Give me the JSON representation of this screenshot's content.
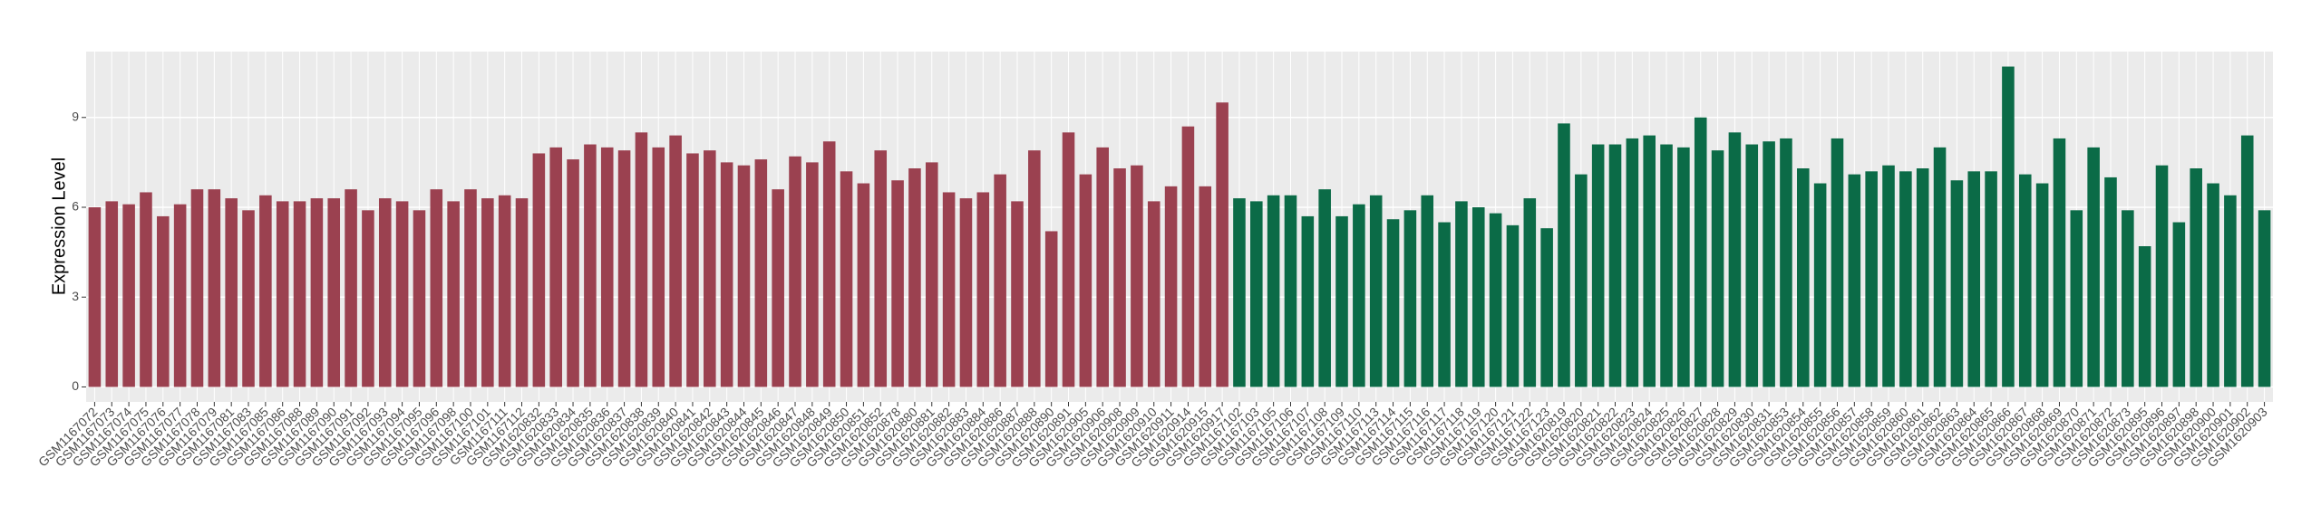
{
  "chart_data": {
    "type": "bar",
    "y_label": "Expression Level",
    "categories": [
      "GSM1167072",
      "GSM1167073",
      "GSM1167074",
      "GSM1167075",
      "GSM1167076",
      "GSM1167077",
      "GSM1167078",
      "GSM1167079",
      "GSM1167081",
      "GSM1167083",
      "GSM1167085",
      "GSM1167086",
      "GSM1167088",
      "GSM1167089",
      "GSM1167090",
      "GSM1167091",
      "GSM1167092",
      "GSM1167093",
      "GSM1167094",
      "GSM1167095",
      "GSM1167096",
      "GSM1167098",
      "GSM1167100",
      "GSM1167101",
      "GSM1167111",
      "GSM1167112",
      "GSM1620832",
      "GSM1620833",
      "GSM1620834",
      "GSM1620835",
      "GSM1620836",
      "GSM1620837",
      "GSM1620838",
      "GSM1620839",
      "GSM1620840",
      "GSM1620841",
      "GSM1620842",
      "GSM1620843",
      "GSM1620844",
      "GSM1620845",
      "GSM1620846",
      "GSM1620847",
      "GSM1620848",
      "GSM1620849",
      "GSM1620850",
      "GSM1620851",
      "GSM1620852",
      "GSM1620878",
      "GSM1620880",
      "GSM1620881",
      "GSM1620882",
      "GSM1620883",
      "GSM1620884",
      "GSM1620886",
      "GSM1620887",
      "GSM1620888",
      "GSM1620890",
      "GSM1620891",
      "GSM1620905",
      "GSM1620906",
      "GSM1620908",
      "GSM1620909",
      "GSM1620910",
      "GSM1620911",
      "GSM1620914",
      "GSM1620915",
      "GSM1620917",
      "GSM1167102",
      "GSM1167103",
      "GSM1167105",
      "GSM1167106",
      "GSM1167107",
      "GSM1167108",
      "GSM1167109",
      "GSM1167110",
      "GSM1167113",
      "GSM1167114",
      "GSM1167115",
      "GSM1167116",
      "GSM1167117",
      "GSM1167118",
      "GSM1167119",
      "GSM1167120",
      "GSM1167121",
      "GSM1167122",
      "GSM1167123",
      "GSM1620819",
      "GSM1620820",
      "GSM1620821",
      "GSM1620822",
      "GSM1620823",
      "GSM1620824",
      "GSM1620825",
      "GSM1620826",
      "GSM1620827",
      "GSM1620828",
      "GSM1620829",
      "GSM1620830",
      "GSM1620831",
      "GSM1620853",
      "GSM1620854",
      "GSM1620855",
      "GSM1620856",
      "GSM1620857",
      "GSM1620858",
      "GSM1620859",
      "GSM1620860",
      "GSM1620861",
      "GSM1620862",
      "GSM1620863",
      "GSM1620864",
      "GSM1620865",
      "GSM1620866",
      "GSM1620867",
      "GSM1620868",
      "GSM1620869",
      "GSM1620870",
      "GSM1620871",
      "GSM1620872",
      "GSM1620873",
      "GSM1620895",
      "GSM1620896",
      "GSM1620897",
      "GSM1620898",
      "GSM1620900",
      "GSM1620901",
      "GSM1620902",
      "GSM1620903"
    ],
    "values": [
      6.0,
      6.2,
      6.1,
      6.5,
      5.7,
      6.1,
      6.6,
      6.6,
      6.3,
      5.9,
      6.4,
      6.2,
      6.2,
      6.3,
      6.3,
      6.6,
      5.9,
      6.3,
      6.2,
      5.9,
      6.6,
      6.2,
      6.6,
      6.3,
      6.4,
      6.3,
      7.8,
      8.0,
      7.6,
      8.1,
      8.0,
      7.9,
      8.5,
      8.0,
      8.4,
      7.8,
      7.9,
      7.5,
      7.4,
      7.6,
      6.6,
      7.7,
      7.5,
      8.2,
      7.2,
      6.8,
      7.9,
      6.9,
      7.3,
      7.5,
      6.5,
      6.3,
      6.5,
      7.1,
      6.2,
      7.9,
      5.2,
      8.5,
      7.1,
      8.0,
      7.3,
      7.4,
      6.2,
      6.7,
      8.7,
      6.7,
      9.5,
      6.3,
      6.2,
      6.4,
      6.4,
      5.7,
      6.6,
      5.7,
      6.1,
      6.4,
      5.6,
      5.9,
      6.4,
      5.5,
      6.2,
      6.0,
      5.8,
      5.4,
      6.3,
      5.3,
      8.8,
      7.1,
      8.1,
      8.1,
      8.3,
      8.4,
      8.1,
      8.0,
      9.0,
      7.9,
      8.5,
      8.1,
      8.2,
      8.3,
      7.3,
      6.8,
      8.3,
      7.1,
      7.2,
      7.4,
      7.2,
      7.3,
      8.0,
      6.9,
      7.2,
      7.2,
      10.7,
      7.1,
      6.8,
      8.3,
      5.9,
      8.0,
      7.0,
      5.9,
      4.7,
      7.4,
      5.5,
      7.3,
      6.8,
      6.4,
      8.4,
      5.9
    ],
    "colors": [
      "#9b4150",
      "#9b4150",
      "#9b4150",
      "#9b4150",
      "#9b4150",
      "#9b4150",
      "#9b4150",
      "#9b4150",
      "#9b4150",
      "#9b4150",
      "#9b4150",
      "#9b4150",
      "#9b4150",
      "#9b4150",
      "#9b4150",
      "#9b4150",
      "#9b4150",
      "#9b4150",
      "#9b4150",
      "#9b4150",
      "#9b4150",
      "#9b4150",
      "#9b4150",
      "#9b4150",
      "#9b4150",
      "#9b4150",
      "#9b4150",
      "#9b4150",
      "#9b4150",
      "#9b4150",
      "#9b4150",
      "#9b4150",
      "#9b4150",
      "#9b4150",
      "#9b4150",
      "#9b4150",
      "#9b4150",
      "#9b4150",
      "#9b4150",
      "#9b4150",
      "#9b4150",
      "#9b4150",
      "#9b4150",
      "#9b4150",
      "#9b4150",
      "#9b4150",
      "#9b4150",
      "#9b4150",
      "#9b4150",
      "#9b4150",
      "#9b4150",
      "#9b4150",
      "#9b4150",
      "#9b4150",
      "#9b4150",
      "#9b4150",
      "#9b4150",
      "#9b4150",
      "#9b4150",
      "#9b4150",
      "#9b4150",
      "#9b4150",
      "#9b4150",
      "#9b4150",
      "#9b4150",
      "#9b4150",
      "#9b4150",
      "#0b6b47",
      "#0b6b47",
      "#0b6b47",
      "#0b6b47",
      "#0b6b47",
      "#0b6b47",
      "#0b6b47",
      "#0b6b47",
      "#0b6b47",
      "#0b6b47",
      "#0b6b47",
      "#0b6b47",
      "#0b6b47",
      "#0b6b47",
      "#0b6b47",
      "#0b6b47",
      "#0b6b47",
      "#0b6b47",
      "#0b6b47",
      "#0b6b47",
      "#0b6b47",
      "#0b6b47",
      "#0b6b47",
      "#0b6b47",
      "#0b6b47",
      "#0b6b47",
      "#0b6b47",
      "#0b6b47",
      "#0b6b47",
      "#0b6b47",
      "#0b6b47",
      "#0b6b47",
      "#0b6b47",
      "#0b6b47",
      "#0b6b47",
      "#0b6b47",
      "#0b6b47",
      "#0b6b47",
      "#0b6b47",
      "#0b6b47",
      "#0b6b47",
      "#0b6b47",
      "#0b6b47",
      "#0b6b47",
      "#0b6b47",
      "#0b6b47",
      "#0b6b47",
      "#0b6b47",
      "#0b6b47",
      "#0b6b47",
      "#0b6b47",
      "#0b6b47",
      "#0b6b47",
      "#0b6b47",
      "#0b6b47",
      "#0b6b47",
      "#0b6b47",
      "#0b6b47",
      "#0b6b47",
      "#0b6b47",
      "#0b6b47"
    ],
    "ylim": [
      -0.5,
      11.2
    ],
    "yticks": [
      0,
      3,
      6,
      9
    ],
    "grid": true
  }
}
